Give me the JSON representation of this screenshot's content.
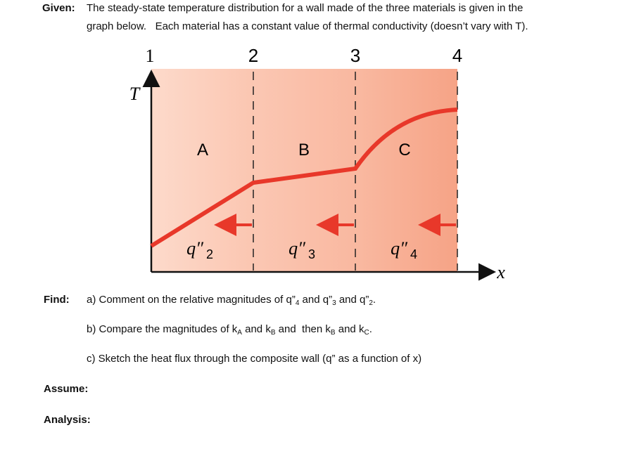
{
  "given": {
    "label": "Given:",
    "lines": [
      "The steady-state temperature distribution for a wall made of the three materials is given in the",
      "graph below.   Each material has a constant value of thermal conductivity (doesn’t vary with T)."
    ]
  },
  "diagram": {
    "boundaries": [
      "1",
      "2",
      "3",
      "4"
    ],
    "y_axis": "T",
    "x_axis": "x",
    "materials": [
      "A",
      "B",
      "C"
    ],
    "fluxes": [
      {
        "symbol": "q″",
        "sub": "2"
      },
      {
        "symbol": "q″",
        "sub": "3"
      },
      {
        "symbol": "q″",
        "sub": "4"
      }
    ]
  },
  "find": {
    "label": "Find:",
    "items": [
      [
        "a) Comment on the relative magnitudes of q”",
        "4",
        " and q”",
        "3",
        " and q”",
        "2",
        "."
      ],
      [
        "b) Compare the magnitudes of k",
        "A",
        " and k",
        "B",
        " and  then k",
        "B",
        " and k",
        "C",
        "."
      ],
      [
        "c) Sketch the heat flux through the composite wall (q” as a function of x)"
      ]
    ]
  },
  "assume": {
    "label": "Assume:"
  },
  "analysis": {
    "label": "Analysis:"
  }
}
